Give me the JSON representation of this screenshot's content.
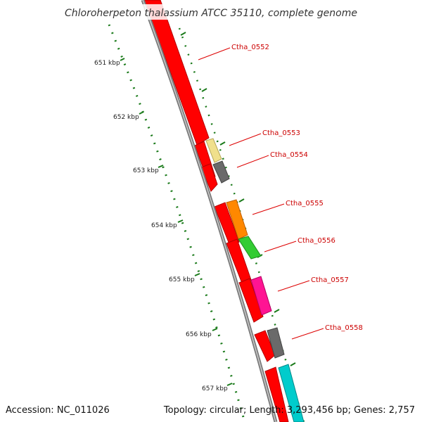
{
  "title": "Chloroherpeton thalassium ATCC 35110, complete genome",
  "accession": "Accession: NC_011026",
  "summary": "Topology: circular; Length: 3,293,456 bp; Genes: 2,757",
  "colors": {
    "backbone": "#7a7a7a",
    "tick": "#1a7a1a",
    "cds": "#ff0000",
    "label": "#cc0000",
    "label_line": "#dd0000"
  },
  "ticks": [
    {
      "label": "651 kbp"
    },
    {
      "label": "652 kbp"
    },
    {
      "label": "653 kbp"
    },
    {
      "label": "654 kbp"
    },
    {
      "label": "655 kbp"
    },
    {
      "label": "656 kbp"
    },
    {
      "label": "657 kbp"
    }
  ],
  "genes": [
    {
      "label": "Ctha_0552",
      "color": "#ff0000"
    },
    {
      "label": "Ctha_0553",
      "color": "#f0e08c"
    },
    {
      "label": "Ctha_0554",
      "color": "#6a6a6a"
    },
    {
      "label": "Ctha_0555",
      "color": "#ff8800"
    },
    {
      "label": "Ctha_0556",
      "color": "#33cc33"
    },
    {
      "label": "Ctha_0557",
      "color": "#ff1493"
    },
    {
      "label": "Ctha_0558",
      "color": "#6a6a6a"
    }
  ],
  "extra_gene": {
    "color": "#00cccc"
  }
}
